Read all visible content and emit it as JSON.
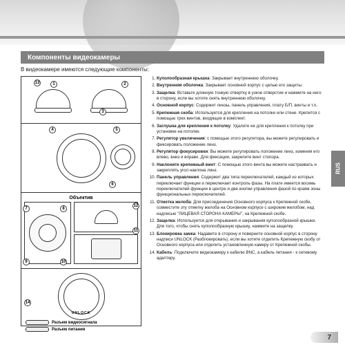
{
  "title": "Компоненты видеокамеры",
  "intro": "В видеокамере имеются следующие компоненты:",
  "lens_label": "Объектив",
  "unlock_label": "UNLOCK",
  "cable_video": "Разъем видеосигнала",
  "cable_power": "Разъем питания",
  "side_tab": "RUS",
  "page": "7",
  "items": [
    {
      "t": "Куполообразная крышка",
      "d": ": Закрывает внутреннюю оболочку."
    },
    {
      "t": "Внутренняя оболочка",
      "d": ": Закрывает основной корпус с целью его защиты."
    },
    {
      "t": "Защелка",
      "d": ": Вставьте длинную тонкую отвертку в узкое отверстие и нажмите на него в сторону, если вы хотите снять внутреннюю оболочку."
    },
    {
      "t": "Основной корпус",
      "d": ": Содержит линзы, панель управления, плату Б/П, винты и т.п."
    },
    {
      "t": "Крепежная скоба",
      "d": ": Используется для крепления на потолке или стене. Крепится с помощью трех винтов, входящих в комплект."
    },
    {
      "t": "Заглушка для крепления к потолку",
      "d": ": Удалите ее для крепления к потолку при установке на потолке."
    },
    {
      "t": "Регулятор увеличения",
      "d": ": с помощью этого регулятора, вы можете регулировать и фиксировать положение линз."
    },
    {
      "t": "Регулятор фокусировки",
      "d": ": Вы можете регулировать положение линз, изменяя его влево, вниз и вправо. Для фиксации, закрепите винт стопора."
    },
    {
      "t": "Наклоните крепежный винт",
      "d": ": С помощью этого винта вы можете настраивать и закреплять угол наклона линз."
    },
    {
      "t": "Панель управления",
      "d": ": Содержит два типа переключателей, каждый из которых переключает функции и переключает контроль фазы. На плате имеется восемь переключателей функции в центре и две кнопки управления фазой по краям зоны функциональных переключателей."
    },
    {
      "t": "Отметка желоба",
      "d": ": Для присоединения Основного корпуса к Крепежной скобе, совместите эту отметку желоба на Основном корпусе с широким желобом, над надписью \"ЛИЦЕВАЯ СТОРОНА КАМЕРЫ\", на Крепежной скобе."
    },
    {
      "t": "Защелка",
      "d": ": Используется для открывания и закрывания куполообразной крышки. Для того, чтобы снять куполообразную крышку, нажмите на защелку."
    },
    {
      "t": "Блокировка замка",
      "d": ": Надавите в сторону и поверните основной корпус в сторону надписи UNLOCK (Разблокировать), если вы хотите отделить Крепежную скобу от Основного корпуса или отделить установленную камеру от Крепежной скобы."
    },
    {
      "t": "Кабель",
      "d": ": Подключите видеокамеру к кабелю BNC, а кабель питания - к сетевому адаптеру."
    }
  ]
}
